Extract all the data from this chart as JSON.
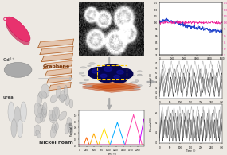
{
  "background_color": "#ede9e3",
  "cycle_stability": {
    "blue_color": "#2244cc",
    "pink_color": "#ee2299"
  },
  "cv_colors": [
    "#ff6600",
    "#ffaa00",
    "#ffdd00",
    "#00aaff",
    "#ff44aa",
    "#cc00ff"
  ],
  "gcd_dark": "#444444",
  "arrow_color": "#bbbbbb"
}
